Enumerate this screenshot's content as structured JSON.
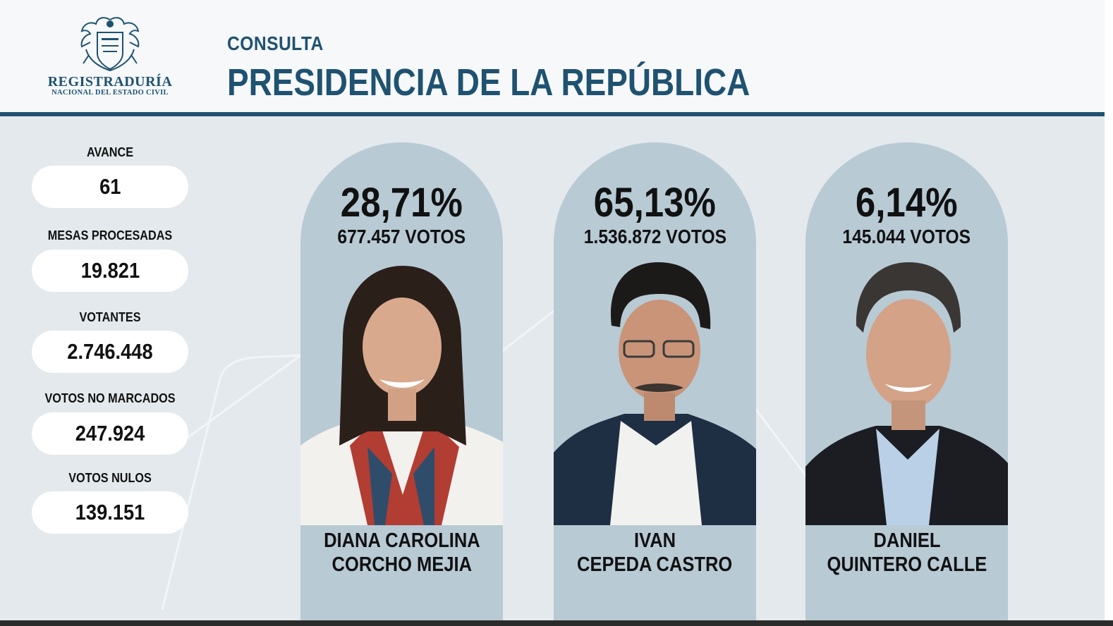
{
  "header": {
    "logo_name": "REGISTRADURÍA",
    "logo_sub": "NACIONAL DEL ESTADO CIVIL",
    "kicker": "CONSULTA",
    "title": "PRESIDENCIA DE LA REPÚBLICA"
  },
  "stats": [
    {
      "label": "AVANCE",
      "value": "61"
    },
    {
      "label": "MESAS PROCESADAS",
      "value": "19.821"
    },
    {
      "label": "VOTANTES",
      "value": "2.746.448"
    },
    {
      "label": "VOTOS NO MARCADOS",
      "value": "247.924"
    },
    {
      "label": "VOTOS NULOS",
      "value": "139.151"
    }
  ],
  "candidates": [
    {
      "percent": "28,71%",
      "votes": "677.457 VOTOS",
      "name_line1": "DIANA CAROLINA",
      "name_line2": "CORCHO MEJIA"
    },
    {
      "percent": "65,13%",
      "votes": "1.536.872 VOTOS",
      "name_line1": "IVAN",
      "name_line2": "CEPEDA CASTRO"
    },
    {
      "percent": "6,14%",
      "votes": "145.044 VOTOS",
      "name_line1": "DANIEL",
      "name_line2": "QUINTERO CALLE"
    }
  ],
  "colors": {
    "brand": "#1f5270",
    "card": "#b8cad4",
    "background": "#e3e9ed"
  }
}
